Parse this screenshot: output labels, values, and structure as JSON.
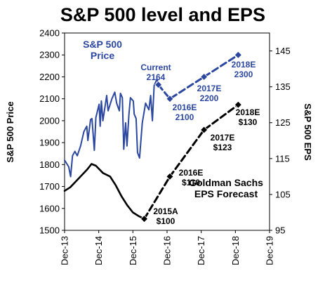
{
  "colors": {
    "price": "#2b47a0",
    "eps": "#000000"
  },
  "chart_data": {
    "type": "line",
    "title": "S&P 500 level and EPS",
    "y_left": {
      "label": "S&P 500 Price",
      "range": [
        1500,
        2400
      ],
      "ticks": [
        "1500",
        "1600",
        "1700",
        "1800",
        "1900",
        "2000",
        "2100",
        "2200",
        "2300",
        "2400"
      ]
    },
    "y_right": {
      "label": "S&P 500 EPS",
      "range": [
        95,
        150
      ],
      "ticks": [
        "95",
        "105",
        "115",
        "125",
        "135",
        "145"
      ]
    },
    "x_axis": {
      "range": [
        "2013-12",
        "2019-12"
      ],
      "ticks": [
        "Dec-13",
        "Dec-14",
        "Dec-15",
        "Dec-16",
        "Dec-17",
        "Dec-18",
        "Dec-19"
      ]
    },
    "series": [
      {
        "name": "S&P 500 Price",
        "axis": "left",
        "style": "solid",
        "points": [
          [
            "2013-12-01",
            1820
          ],
          [
            "2014-01-15",
            1790
          ],
          [
            "2014-02-05",
            1745
          ],
          [
            "2014-02-25",
            1840
          ],
          [
            "2014-03-20",
            1860
          ],
          [
            "2014-04-15",
            1840
          ],
          [
            "2014-05-20",
            1885
          ],
          [
            "2014-06-25",
            1950
          ],
          [
            "2014-07-25",
            1975
          ],
          [
            "2014-08-07",
            1910
          ],
          [
            "2014-09-05",
            2005
          ],
          [
            "2014-09-20",
            2010
          ],
          [
            "2014-10-15",
            1865
          ],
          [
            "2014-11-01",
            2015
          ],
          [
            "2014-12-05",
            2075
          ],
          [
            "2014-12-16",
            1975
          ],
          [
            "2014-12-29",
            2090
          ],
          [
            "2015-01-15",
            2000
          ],
          [
            "2015-02-25",
            2115
          ],
          [
            "2015-03-10",
            2045
          ],
          [
            "2015-04-20",
            2100
          ],
          [
            "2015-05-20",
            2130
          ],
          [
            "2015-06-10",
            2080
          ],
          [
            "2015-07-08",
            2045
          ],
          [
            "2015-07-20",
            2125
          ],
          [
            "2015-08-10",
            2105
          ],
          [
            "2015-08-25",
            1870
          ],
          [
            "2015-09-15",
            1990
          ],
          [
            "2015-09-29",
            1885
          ],
          [
            "2015-10-20",
            2030
          ],
          [
            "2015-11-05",
            2105
          ],
          [
            "2015-12-05",
            2090
          ],
          [
            "2015-12-15",
            2030
          ],
          [
            "2016-01-05",
            2010
          ],
          [
            "2016-01-20",
            1855
          ],
          [
            "2016-02-11",
            1830
          ],
          [
            "2016-03-10",
            1990
          ],
          [
            "2016-04-15",
            2080
          ],
          [
            "2016-05-20",
            2050
          ],
          [
            "2016-06-08",
            2115
          ],
          [
            "2016-06-27",
            2000
          ],
          [
            "2016-07-15",
            2160
          ],
          [
            "2016-08-15",
            2190
          ],
          [
            "2016-08-30",
            2170
          ]
        ]
      },
      {
        "name": "S&P 500 Price (forecast)",
        "axis": "left",
        "style": "dashed",
        "points": [
          [
            "2016-08-30",
            2164
          ],
          [
            "2016-12-31",
            2100
          ],
          [
            "2017-12-31",
            2200
          ],
          [
            "2018-12-31",
            2300
          ]
        ],
        "markers": [
          [
            "2016-08-30",
            2164
          ],
          [
            "2016-12-31",
            2100
          ],
          [
            "2017-12-31",
            2200
          ],
          [
            "2018-12-31",
            2300
          ]
        ]
      },
      {
        "name": "S&P 500 EPS",
        "axis": "right",
        "style": "solid",
        "points": [
          [
            "2013-12-01",
            106
          ],
          [
            "2014-02-01",
            107
          ],
          [
            "2014-05-01",
            109.5
          ],
          [
            "2014-08-01",
            112
          ],
          [
            "2014-09-15",
            113.5
          ],
          [
            "2014-11-01",
            113
          ],
          [
            "2015-01-15",
            111
          ],
          [
            "2015-04-01",
            110
          ],
          [
            "2015-06-01",
            107.5
          ],
          [
            "2015-08-01",
            104.5
          ],
          [
            "2015-10-01",
            102
          ],
          [
            "2015-12-01",
            100
          ],
          [
            "2016-02-01",
            99
          ],
          [
            "2016-03-31",
            98.2
          ]
        ]
      },
      {
        "name": "Goldman Sachs EPS Forecast",
        "axis": "right",
        "style": "dashed",
        "points": [
          [
            "2016-03-31",
            98.2
          ],
          [
            "2016-12-31",
            110
          ],
          [
            "2017-12-31",
            123
          ],
          [
            "2018-12-31",
            130
          ]
        ],
        "markers": [
          [
            "2016-03-31",
            98.2
          ],
          [
            "2016-12-31",
            110
          ],
          [
            "2017-12-31",
            123
          ],
          [
            "2018-12-31",
            130
          ]
        ]
      }
    ],
    "annotations": [
      {
        "id": "price-label",
        "lines": [
          "S&P 500",
          "Price"
        ],
        "color": "price",
        "size": "big"
      },
      {
        "id": "current",
        "lines": [
          "Current",
          "2164"
        ],
        "color": "price"
      },
      {
        "id": "p2016",
        "lines": [
          "2016E",
          "2100"
        ],
        "color": "price"
      },
      {
        "id": "p2017",
        "lines": [
          "2017E",
          "2200"
        ],
        "color": "price"
      },
      {
        "id": "p2018",
        "lines": [
          "2018E",
          "2300"
        ],
        "color": "price"
      },
      {
        "id": "e2015",
        "lines": [
          "2015A",
          "$100"
        ],
        "color": "eps"
      },
      {
        "id": "e2016",
        "lines": [
          "2016E",
          "$110"
        ],
        "color": "eps"
      },
      {
        "id": "e2017",
        "lines": [
          "2017E",
          "$123"
        ],
        "color": "eps"
      },
      {
        "id": "e2018",
        "lines": [
          "2018E",
          "$130"
        ],
        "color": "eps"
      },
      {
        "id": "gs",
        "lines": [
          "Goldman Sachs",
          "EPS Forecast"
        ],
        "color": "eps",
        "size": "big"
      }
    ]
  }
}
